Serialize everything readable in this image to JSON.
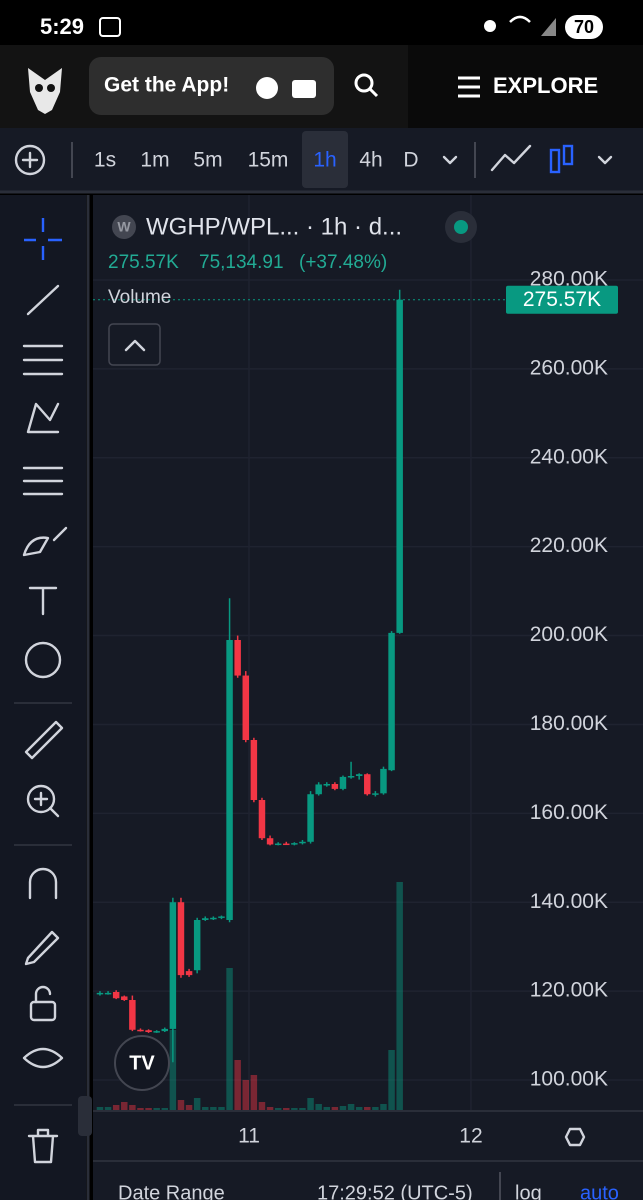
{
  "status_bar": {
    "time": "5:29",
    "battery": "70"
  },
  "header": {
    "app_button": "Get the App!",
    "explore": "EXPLORE"
  },
  "toolbar": {
    "intervals": [
      "1s",
      "1m",
      "5m",
      "15m",
      "1h",
      "4h",
      "D"
    ],
    "selected": 4
  },
  "legend": {
    "symbol_initial": "W",
    "title": "WGHP/WPL... · 1h · d...",
    "volume_value": "275.57K",
    "price": "75,134.91",
    "change": "(+37.48%)",
    "volume_label": "Volume"
  },
  "chart_data": {
    "type": "candlestick",
    "open": [
      119300,
      119600,
      119800,
      118800,
      118000,
      111300,
      111200,
      110800,
      111000,
      111500,
      140000,
      124500,
      124700,
      136000,
      136400,
      136500,
      136000,
      199000,
      191000,
      176500,
      163000,
      154400,
      153000,
      153200,
      153100,
      153300,
      153600,
      164300,
      166500,
      166600,
      165500,
      168200,
      168400,
      168800,
      164300,
      164500,
      169700,
      200600
    ],
    "high": [
      120000,
      120000,
      120200,
      119000,
      119000,
      111600,
      111400,
      111200,
      111800,
      141000,
      141000,
      125000,
      136500,
      136800,
      136800,
      137000,
      208400,
      200000,
      192000,
      177000,
      163500,
      155000,
      153500,
      153600,
      153500,
      154000,
      165000,
      167000,
      167000,
      167000,
      168500,
      171600,
      169000,
      169000,
      165000,
      170500,
      201000,
      277800
    ],
    "low": [
      119000,
      119200,
      118200,
      117800,
      111000,
      110900,
      110600,
      110600,
      110800,
      104000,
      123000,
      123200,
      124000,
      135800,
      136000,
      136200,
      135500,
      190500,
      176000,
      162500,
      154000,
      152800,
      152800,
      152900,
      152800,
      153000,
      153200,
      164000,
      166000,
      165200,
      165200,
      167800,
      167600,
      164000,
      163800,
      164200,
      169500,
      200400
    ],
    "close": [
      119600,
      119600,
      118400,
      118000,
      111300,
      111200,
      110800,
      111000,
      111500,
      140000,
      123600,
      123600,
      136000,
      136400,
      136500,
      136800,
      199000,
      191000,
      176500,
      163000,
      154400,
      153000,
      153200,
      153100,
      153300,
      153600,
      164300,
      166500,
      166600,
      165500,
      168200,
      168400,
      168800,
      164300,
      164500,
      170000,
      200600,
      275570
    ],
    "volumes": [
      3,
      3,
      5,
      8,
      5,
      2,
      2,
      2,
      2,
      80,
      10,
      5,
      12,
      3,
      3,
      3,
      142,
      50,
      30,
      35,
      8,
      3,
      2,
      2,
      2,
      2,
      12,
      6,
      3,
      3,
      4,
      6,
      3,
      3,
      3,
      6,
      60,
      228
    ],
    "up_color": "#089981",
    "down_color": "#f23645",
    "ylim": [
      93250,
      299125
    ],
    "yticks": [
      {
        "value": 100000,
        "label": "100.00K"
      },
      {
        "value": 120000,
        "label": "120.00K"
      },
      {
        "value": 140000,
        "label": "140.00K"
      },
      {
        "value": 160000,
        "label": "160.00K"
      },
      {
        "value": 180000,
        "label": "180.00K"
      },
      {
        "value": 200000,
        "label": "200.00K"
      },
      {
        "value": 220000,
        "label": "220.00K"
      },
      {
        "value": 240000,
        "label": "240.00K"
      },
      {
        "value": 260000,
        "label": "260.00K"
      },
      {
        "value": 280000,
        "label": "280.00K"
      }
    ],
    "xlim": [
      -0.86,
      50.62
    ],
    "xticks": [
      {
        "value": 18.4,
        "label": "11"
      },
      {
        "value": 45.8,
        "label": "12"
      }
    ],
    "y2lim": [
      0,
      300
    ],
    "last_price": {
      "value": 275570,
      "label": "275.57K"
    },
    "grid": true
  },
  "footer": {
    "date_range": "Date Range",
    "time": "17:29:52 (UTC-5)",
    "log": "log",
    "auto": "auto"
  }
}
